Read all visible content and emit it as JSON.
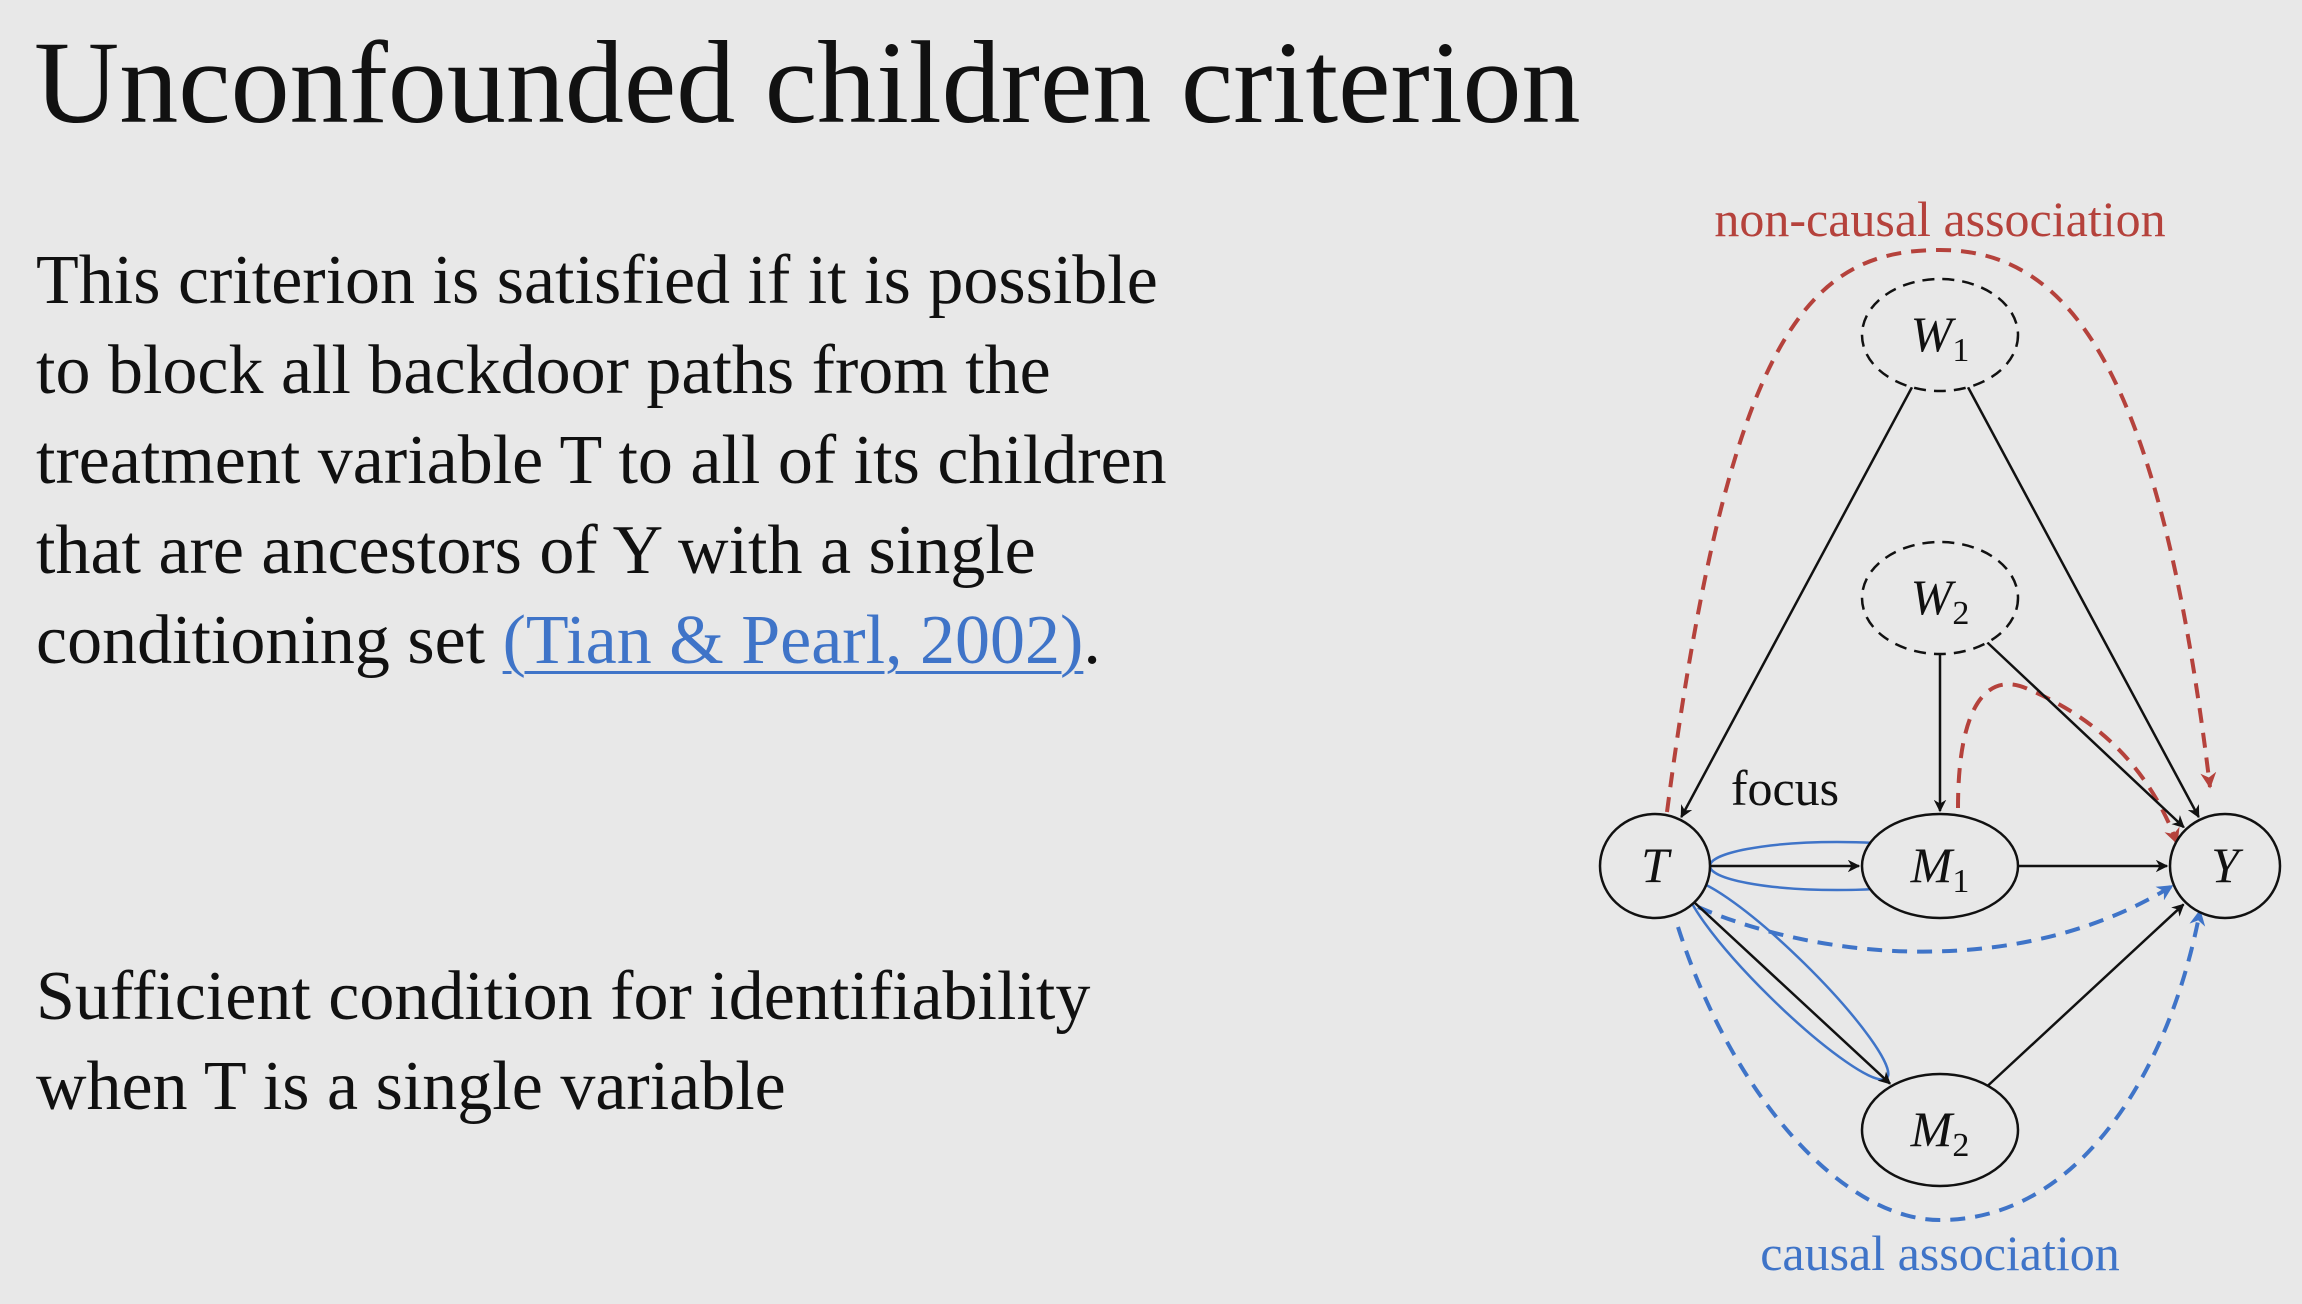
{
  "title": "Unconfounded children criterion",
  "paragraph1": {
    "lines": [
      "This criterion is satisfied if it is possible",
      "to block all backdoor paths from the",
      "treatment variable T to all of its children",
      "that are ancestors of Y with a single"
    ],
    "last_line_prefix": "conditioning set ",
    "citation": "(Tian & Pearl, 2002)",
    "last_line_suffix": "."
  },
  "paragraph2": {
    "lines": [
      "Sufficient condition for identifiability",
      "when T is a single variable"
    ]
  },
  "diagram": {
    "nodes": {
      "W1": {
        "main": "W",
        "sub": "1",
        "observed": false
      },
      "W2": {
        "main": "W",
        "sub": "2",
        "observed": false
      },
      "T": {
        "main": "T",
        "sub": "",
        "observed": true
      },
      "M1": {
        "main": "M",
        "sub": "1",
        "observed": true
      },
      "M2": {
        "main": "M",
        "sub": "2",
        "observed": true
      },
      "Y": {
        "main": "Y",
        "sub": "",
        "observed": true
      }
    },
    "edges": [
      [
        "W1",
        "T"
      ],
      [
        "W1",
        "Y"
      ],
      [
        "W2",
        "M1"
      ],
      [
        "W2",
        "Y"
      ],
      [
        "T",
        "M1"
      ],
      [
        "T",
        "M2"
      ],
      [
        "M1",
        "Y"
      ],
      [
        "M2",
        "Y"
      ]
    ],
    "focus_label": "focus",
    "non_causal_label": "non-causal association",
    "causal_label": "causal association",
    "colors": {
      "non_causal": "#b5423c",
      "causal": "#3f74c8",
      "edge": "#111111"
    }
  }
}
